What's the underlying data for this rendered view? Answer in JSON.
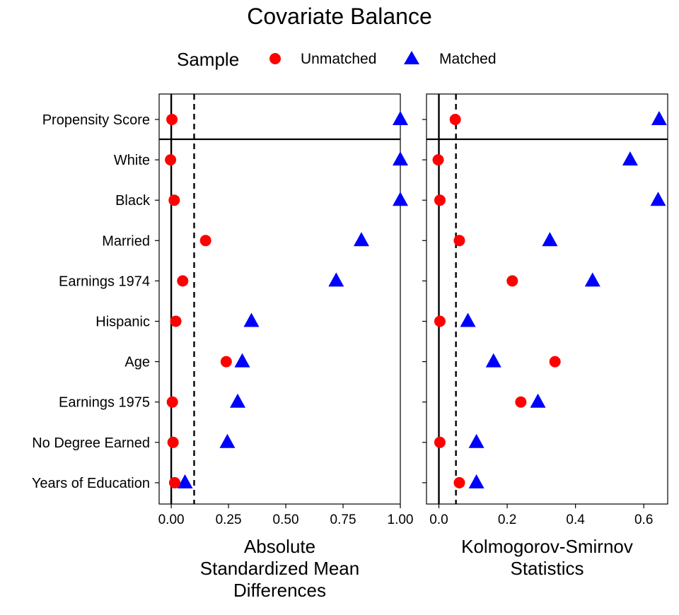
{
  "title": "Covariate Balance",
  "legend": {
    "title": "Sample",
    "placement": "top",
    "items": [
      {
        "label": "Unmatched",
        "shape": "circle",
        "color": "#FF0000"
      },
      {
        "label": "Matched",
        "shape": "triangle",
        "color": "#0000FF"
      }
    ]
  },
  "chart_data": [
    {
      "type": "scatter",
      "panel": "left",
      "categories": [
        "Propensity Score",
        "White",
        "Black",
        "Married",
        "Earnings 1974",
        "Hispanic",
        "Age",
        "Earnings 1975",
        "No Degree Earned",
        "Years of Education"
      ],
      "series": [
        {
          "name": "Unmatched",
          "values": [
            0.003,
            -0.003,
            0.013,
            0.15,
            0.05,
            0.02,
            0.24,
            0.005,
            0.008,
            0.015
          ]
        },
        {
          "name": "Matched",
          "values": [
            1.0,
            1.0,
            1.0,
            0.83,
            0.72,
            0.35,
            0.31,
            0.29,
            0.245,
            0.06
          ]
        }
      ],
      "xlabel_lines": [
        "Absolute",
        "Standardized Mean",
        "Differences"
      ],
      "xlim": [
        -0.05,
        1.0
      ],
      "xticks": [
        0,
        0.25,
        0.5,
        0.75,
        1.0
      ],
      "xtick_labels": [
        "0.00",
        "0.25",
        "0.50",
        "0.75",
        "1.00"
      ],
      "threshold": 0.1,
      "grid": false
    },
    {
      "type": "scatter",
      "panel": "right",
      "categories": [
        "Propensity Score",
        "White",
        "Black",
        "Married",
        "Earnings 1974",
        "Hispanic",
        "Age",
        "Earnings 1975",
        "No Degree Earned",
        "Years of Education"
      ],
      "series": [
        {
          "name": "Unmatched",
          "values": [
            0.048,
            -0.002,
            0.003,
            0.06,
            0.215,
            0.003,
            0.34,
            0.24,
            0.003,
            0.06
          ]
        },
        {
          "name": "Matched",
          "values": [
            0.645,
            0.56,
            0.642,
            0.325,
            0.45,
            0.085,
            0.16,
            0.29,
            0.11,
            0.11
          ]
        }
      ],
      "xlabel_lines": [
        "Kolmogorov-Smirnov",
        "Statistics"
      ],
      "xlim": [
        -0.03,
        0.67
      ],
      "xticks": [
        0,
        0.2,
        0.4,
        0.6
      ],
      "xtick_labels": [
        "0.0",
        "0.2",
        "0.4",
        "0.6"
      ],
      "threshold": 0.05,
      "grid": false
    }
  ]
}
